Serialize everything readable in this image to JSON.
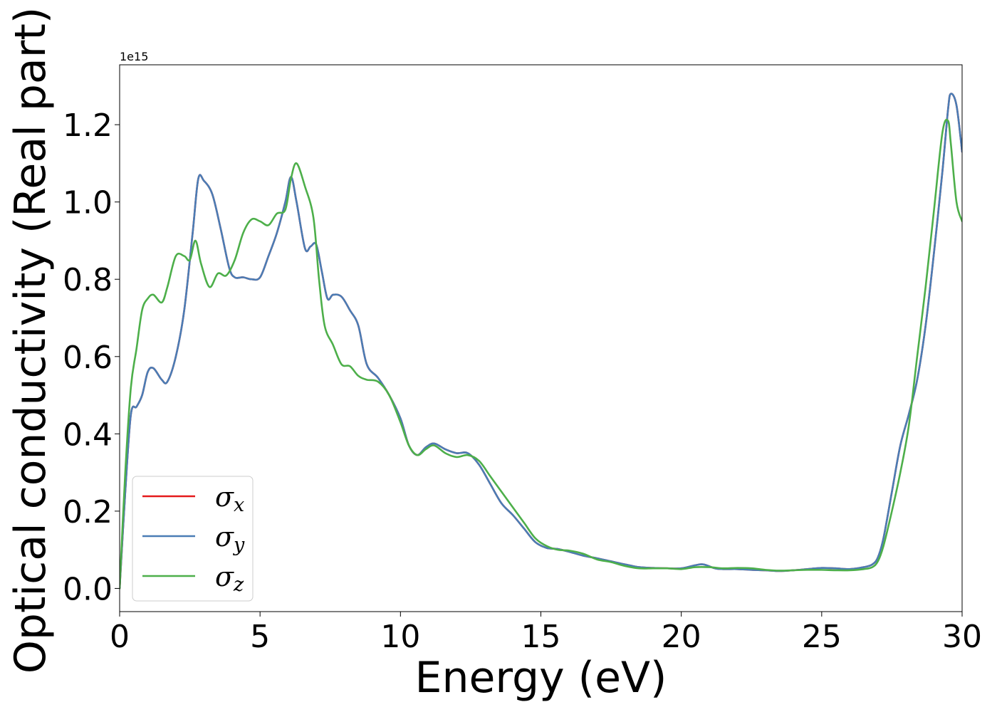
{
  "chart_data": {
    "type": "line",
    "xlabel": "Energy (eV)",
    "ylabel": "Optical conductivity (Real part)",
    "offset_text": "1e15",
    "xlim": [
      0,
      30
    ],
    "ylim": [
      -0.06,
      1.355
    ],
    "x_ticks": [
      0,
      5,
      10,
      15,
      20,
      25,
      30
    ],
    "x_tick_labels": [
      "0",
      "5",
      "10",
      "15",
      "20",
      "25",
      "30"
    ],
    "y_ticks": [
      0.0,
      0.2,
      0.4,
      0.6,
      0.8,
      1.0,
      1.2
    ],
    "y_tick_labels": [
      "0.0",
      "0.2",
      "0.4",
      "0.6",
      "0.8",
      "1.0",
      "1.2"
    ],
    "y_scale_factor": 1000000000000000.0,
    "grid": false,
    "legend_placement": "lower-left",
    "series": [
      {
        "name": "σx",
        "symbol": "σ",
        "subscript": "x",
        "color": "#e41a1c",
        "x": [
          0,
          0.2,
          0.4,
          0.6,
          0.8,
          1.0,
          1.2,
          1.5,
          1.7,
          2.0,
          2.3,
          2.6,
          2.8,
          3.0,
          3.3,
          3.6,
          3.9,
          4.1,
          4.4,
          4.7,
          5.0,
          5.3,
          5.6,
          5.9,
          6.1,
          6.3,
          6.6,
          6.8,
          7.0,
          7.2,
          7.4,
          7.6,
          7.9,
          8.2,
          8.5,
          8.8,
          9.2,
          9.6,
          10.0,
          10.3,
          10.6,
          10.9,
          11.2,
          11.6,
          12.0,
          12.4,
          12.8,
          13.2,
          13.6,
          14.0,
          14.4,
          14.8,
          15.2,
          15.6,
          16.0,
          16.5,
          17.0,
          17.5,
          18.0,
          18.5,
          19.0,
          19.5,
          20.0,
          20.5,
          20.8,
          21.2,
          21.5,
          22.0,
          22.5,
          23.0,
          23.5,
          24.0,
          24.5,
          25.0,
          25.5,
          26.0,
          26.5,
          26.8,
          27.0,
          27.2,
          27.5,
          27.8,
          28.1,
          28.4,
          28.7,
          29.0,
          29.3,
          29.5,
          29.6,
          29.8,
          30.0
        ],
        "values": [
          0.0,
          0.25,
          0.45,
          0.47,
          0.5,
          0.56,
          0.57,
          0.54,
          0.535,
          0.6,
          0.72,
          0.92,
          1.06,
          1.055,
          1.02,
          0.93,
          0.83,
          0.805,
          0.805,
          0.8,
          0.805,
          0.86,
          0.92,
          1.0,
          1.065,
          1.0,
          0.88,
          0.885,
          0.89,
          0.82,
          0.75,
          0.76,
          0.755,
          0.72,
          0.68,
          0.58,
          0.545,
          0.5,
          0.44,
          0.37,
          0.345,
          0.365,
          0.375,
          0.36,
          0.35,
          0.35,
          0.32,
          0.27,
          0.22,
          0.19,
          0.155,
          0.12,
          0.105,
          0.102,
          0.095,
          0.085,
          0.078,
          0.07,
          0.062,
          0.055,
          0.053,
          0.052,
          0.052,
          0.06,
          0.062,
          0.052,
          0.05,
          0.05,
          0.048,
          0.047,
          0.045,
          0.047,
          0.05,
          0.053,
          0.052,
          0.05,
          0.055,
          0.062,
          0.08,
          0.13,
          0.25,
          0.37,
          0.45,
          0.54,
          0.68,
          0.87,
          1.08,
          1.24,
          1.28,
          1.25,
          1.13
        ]
      },
      {
        "name": "σy",
        "symbol": "σ",
        "subscript": "y",
        "color": "#4a7db5",
        "x": [
          0,
          0.2,
          0.4,
          0.6,
          0.8,
          1.0,
          1.2,
          1.5,
          1.7,
          2.0,
          2.3,
          2.6,
          2.8,
          3.0,
          3.3,
          3.6,
          3.9,
          4.1,
          4.4,
          4.7,
          5.0,
          5.3,
          5.6,
          5.9,
          6.1,
          6.3,
          6.6,
          6.8,
          7.0,
          7.2,
          7.4,
          7.6,
          7.9,
          8.2,
          8.5,
          8.8,
          9.2,
          9.6,
          10.0,
          10.3,
          10.6,
          10.9,
          11.2,
          11.6,
          12.0,
          12.4,
          12.8,
          13.2,
          13.6,
          14.0,
          14.4,
          14.8,
          15.2,
          15.6,
          16.0,
          16.5,
          17.0,
          17.5,
          18.0,
          18.5,
          19.0,
          19.5,
          20.0,
          20.5,
          20.8,
          21.2,
          21.5,
          22.0,
          22.5,
          23.0,
          23.5,
          24.0,
          24.5,
          25.0,
          25.5,
          26.0,
          26.5,
          26.8,
          27.0,
          27.2,
          27.5,
          27.8,
          28.1,
          28.4,
          28.7,
          29.0,
          29.3,
          29.5,
          29.6,
          29.8,
          30.0
        ],
        "values": [
          0.0,
          0.25,
          0.45,
          0.47,
          0.5,
          0.56,
          0.57,
          0.54,
          0.535,
          0.6,
          0.72,
          0.92,
          1.06,
          1.055,
          1.02,
          0.93,
          0.83,
          0.805,
          0.805,
          0.8,
          0.805,
          0.86,
          0.92,
          1.0,
          1.065,
          1.0,
          0.88,
          0.885,
          0.89,
          0.82,
          0.75,
          0.76,
          0.755,
          0.72,
          0.68,
          0.58,
          0.545,
          0.5,
          0.44,
          0.37,
          0.345,
          0.365,
          0.375,
          0.36,
          0.35,
          0.35,
          0.32,
          0.27,
          0.22,
          0.19,
          0.155,
          0.12,
          0.105,
          0.102,
          0.095,
          0.085,
          0.078,
          0.07,
          0.062,
          0.055,
          0.053,
          0.052,
          0.052,
          0.06,
          0.062,
          0.052,
          0.05,
          0.05,
          0.048,
          0.047,
          0.045,
          0.047,
          0.05,
          0.053,
          0.052,
          0.05,
          0.055,
          0.062,
          0.08,
          0.13,
          0.25,
          0.37,
          0.45,
          0.54,
          0.68,
          0.87,
          1.08,
          1.24,
          1.28,
          1.25,
          1.13
        ]
      },
      {
        "name": "σz",
        "symbol": "σ",
        "subscript": "z",
        "color": "#4daf4a",
        "x": [
          0,
          0.2,
          0.4,
          0.6,
          0.8,
          1.0,
          1.2,
          1.5,
          1.7,
          2.0,
          2.3,
          2.5,
          2.7,
          2.9,
          3.2,
          3.5,
          3.8,
          4.1,
          4.4,
          4.7,
          5.0,
          5.3,
          5.6,
          5.9,
          6.1,
          6.3,
          6.6,
          6.9,
          7.1,
          7.3,
          7.6,
          7.9,
          8.2,
          8.5,
          8.8,
          9.2,
          9.6,
          10.0,
          10.3,
          10.6,
          10.9,
          11.2,
          11.6,
          12.0,
          12.4,
          12.8,
          13.2,
          13.6,
          14.0,
          14.4,
          14.8,
          15.2,
          15.6,
          16.0,
          16.5,
          17.0,
          17.5,
          18.0,
          18.5,
          19.0,
          19.5,
          20.0,
          20.5,
          21.0,
          21.5,
          22.0,
          22.5,
          23.0,
          23.5,
          24.0,
          24.5,
          25.0,
          25.5,
          26.0,
          26.5,
          26.8,
          27.0,
          27.2,
          27.5,
          27.8,
          28.1,
          28.4,
          28.7,
          29.0,
          29.3,
          29.5,
          29.6,
          29.8,
          30.0
        ],
        "values": [
          0.0,
          0.3,
          0.52,
          0.62,
          0.72,
          0.75,
          0.76,
          0.74,
          0.78,
          0.86,
          0.86,
          0.85,
          0.9,
          0.84,
          0.78,
          0.815,
          0.81,
          0.85,
          0.92,
          0.955,
          0.95,
          0.94,
          0.97,
          0.98,
          1.06,
          1.1,
          1.04,
          0.96,
          0.8,
          0.68,
          0.63,
          0.58,
          0.575,
          0.55,
          0.54,
          0.535,
          0.5,
          0.43,
          0.37,
          0.345,
          0.36,
          0.37,
          0.35,
          0.34,
          0.345,
          0.33,
          0.29,
          0.25,
          0.21,
          0.17,
          0.13,
          0.11,
          0.1,
          0.098,
          0.09,
          0.075,
          0.068,
          0.058,
          0.052,
          0.052,
          0.052,
          0.05,
          0.055,
          0.055,
          0.052,
          0.053,
          0.052,
          0.048,
          0.046,
          0.047,
          0.048,
          0.048,
          0.047,
          0.047,
          0.05,
          0.055,
          0.07,
          0.11,
          0.2,
          0.3,
          0.42,
          0.6,
          0.78,
          0.98,
          1.18,
          1.21,
          1.15,
          1.0,
          0.95
        ]
      }
    ]
  }
}
